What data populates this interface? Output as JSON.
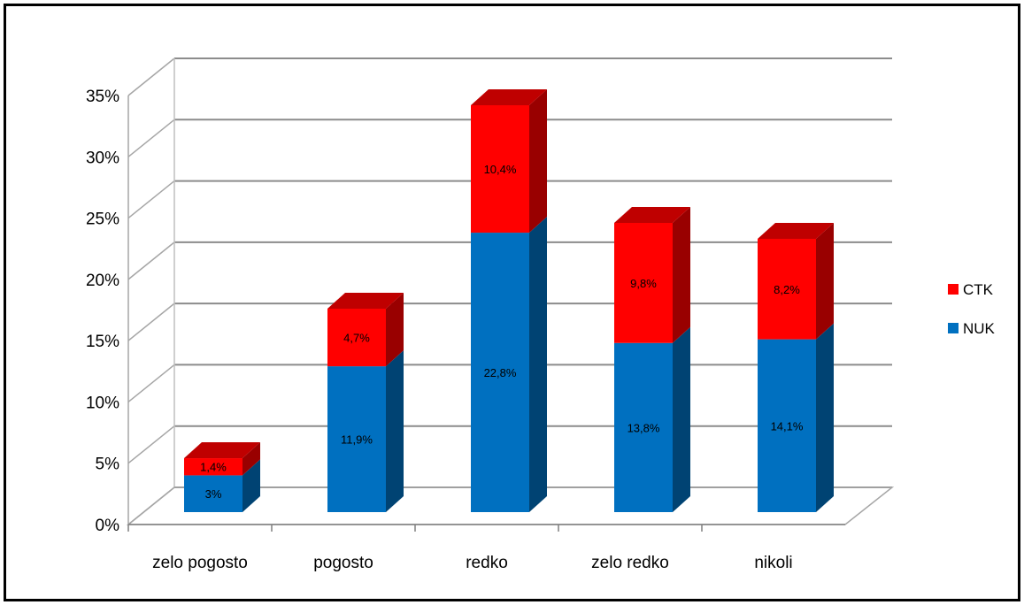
{
  "chart_data": {
    "type": "bar",
    "stacked": true,
    "three_d": true,
    "categories": [
      "zelo pogosto",
      "pogosto",
      "redko",
      "zelo redko",
      "nikoli"
    ],
    "series": [
      {
        "name": "NUK",
        "values": [
          3.0,
          11.9,
          22.8,
          13.8,
          14.1
        ],
        "labels": [
          "3%",
          "11,9%",
          "22,8%",
          "13,8%",
          "14,1%"
        ],
        "color": "#0070C0"
      },
      {
        "name": "CTK",
        "values": [
          1.4,
          4.7,
          10.4,
          9.8,
          8.2
        ],
        "labels": [
          "1,4%",
          "4,7%",
          "10,4%",
          "9,8%",
          "8,2%"
        ],
        "color": "#FF0000"
      }
    ],
    "y_ticks": [
      "0%",
      "5%",
      "10%",
      "15%",
      "20%",
      "25%",
      "30%",
      "35%"
    ],
    "ylim": [
      0,
      35
    ],
    "grid": true,
    "legend_position": "right"
  }
}
